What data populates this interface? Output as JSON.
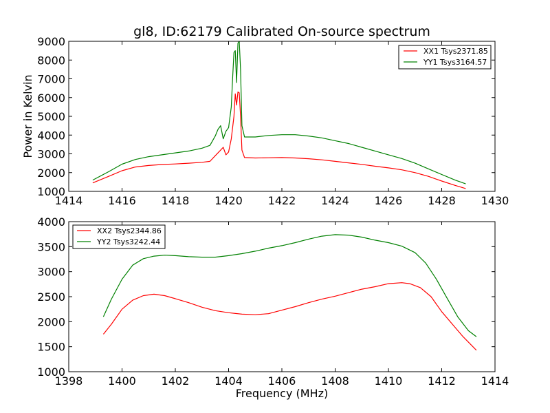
{
  "chart_data": [
    {
      "type": "line",
      "title": "gl8, ID:62179 Calibrated On-source spectrum",
      "xlabel": "",
      "ylabel": "Power in Kelvin",
      "xlim": [
        1414,
        1430
      ],
      "ylim": [
        1000,
        9000
      ],
      "xticks": [
        1414,
        1416,
        1418,
        1420,
        1422,
        1424,
        1426,
        1428,
        1430
      ],
      "yticks": [
        1000,
        2000,
        3000,
        4000,
        5000,
        6000,
        7000,
        8000,
        9000
      ],
      "legend_position": "top-right",
      "series": [
        {
          "name": "XX1 Tsys2371.85",
          "color": "#ff0000",
          "x": [
            1414.9,
            1415.5,
            1416.0,
            1416.5,
            1417.0,
            1417.5,
            1418.0,
            1418.5,
            1419.0,
            1419.3,
            1419.5,
            1419.7,
            1419.8,
            1419.9,
            1420.0,
            1420.1,
            1420.2,
            1420.25,
            1420.3,
            1420.35,
            1420.4,
            1420.45,
            1420.5,
            1420.6,
            1421.0,
            1421.5,
            1422.0,
            1422.5,
            1423.0,
            1423.5,
            1424.0,
            1424.5,
            1425.0,
            1425.5,
            1426.0,
            1426.5,
            1427.0,
            1427.5,
            1428.0,
            1428.5,
            1428.9
          ],
          "y": [
            1450,
            1800,
            2100,
            2300,
            2380,
            2430,
            2460,
            2500,
            2550,
            2600,
            2900,
            3200,
            3350,
            2950,
            3100,
            3800,
            5000,
            6200,
            5600,
            6300,
            6250,
            5000,
            3200,
            2800,
            2780,
            2790,
            2800,
            2780,
            2740,
            2680,
            2600,
            2520,
            2440,
            2340,
            2250,
            2150,
            2000,
            1800,
            1550,
            1320,
            1150
          ]
        },
        {
          "name": "YY1 Tsys3164.57",
          "color": "#008000",
          "x": [
            1414.9,
            1415.5,
            1416.0,
            1416.5,
            1417.0,
            1417.5,
            1418.0,
            1418.5,
            1419.0,
            1419.3,
            1419.5,
            1419.6,
            1419.7,
            1419.8,
            1419.9,
            1420.0,
            1420.1,
            1420.15,
            1420.2,
            1420.25,
            1420.3,
            1420.35,
            1420.4,
            1420.45,
            1420.5,
            1420.6,
            1421.0,
            1421.5,
            1422.0,
            1422.5,
            1423.0,
            1423.5,
            1424.0,
            1424.5,
            1425.0,
            1425.5,
            1426.0,
            1426.5,
            1427.0,
            1427.5,
            1428.0,
            1428.5,
            1428.9
          ],
          "y": [
            1600,
            2050,
            2450,
            2700,
            2850,
            2950,
            3050,
            3150,
            3300,
            3450,
            3950,
            4300,
            4500,
            3800,
            4200,
            4400,
            5500,
            7000,
            8400,
            8500,
            6800,
            8900,
            9000,
            7500,
            4500,
            3900,
            3900,
            3980,
            4020,
            4020,
            3950,
            3850,
            3700,
            3550,
            3350,
            3150,
            2950,
            2750,
            2500,
            2200,
            1900,
            1600,
            1400
          ]
        }
      ]
    },
    {
      "type": "line",
      "title": "",
      "xlabel": "Frequency (MHz)",
      "ylabel": "",
      "xlim": [
        1398,
        1414
      ],
      "ylim": [
        1000,
        4000
      ],
      "xticks": [
        1398,
        1400,
        1402,
        1404,
        1406,
        1408,
        1410,
        1412,
        1414
      ],
      "yticks": [
        1000,
        1500,
        2000,
        2500,
        3000,
        3500,
        4000
      ],
      "legend_position": "top-left",
      "series": [
        {
          "name": "XX2 Tsys2344.86",
          "color": "#ff0000",
          "x": [
            1399.3,
            1399.6,
            1400.0,
            1400.4,
            1400.8,
            1401.2,
            1401.6,
            1402.0,
            1402.5,
            1403.0,
            1403.5,
            1404.0,
            1404.5,
            1405.0,
            1405.5,
            1406.0,
            1406.5,
            1407.0,
            1407.5,
            1408.0,
            1408.5,
            1409.0,
            1409.5,
            1410.0,
            1410.5,
            1410.8,
            1411.2,
            1411.6,
            1412.0,
            1412.4,
            1412.8,
            1413.3
          ],
          "y": [
            1750,
            1950,
            2250,
            2430,
            2520,
            2550,
            2520,
            2460,
            2380,
            2290,
            2220,
            2180,
            2150,
            2140,
            2160,
            2230,
            2300,
            2380,
            2450,
            2510,
            2580,
            2650,
            2700,
            2760,
            2780,
            2760,
            2680,
            2500,
            2200,
            1950,
            1700,
            1430
          ]
        },
        {
          "name": "YY2 Tsys3242.44",
          "color": "#008000",
          "x": [
            1399.3,
            1399.6,
            1400.0,
            1400.4,
            1400.8,
            1401.2,
            1401.6,
            1402.0,
            1402.5,
            1403.0,
            1403.5,
            1404.0,
            1404.5,
            1405.0,
            1405.5,
            1406.0,
            1406.5,
            1407.0,
            1407.5,
            1408.0,
            1408.5,
            1409.0,
            1409.5,
            1410.0,
            1410.5,
            1411.0,
            1411.4,
            1411.8,
            1412.2,
            1412.6,
            1413.0,
            1413.3
          ],
          "y": [
            2100,
            2450,
            2850,
            3130,
            3260,
            3310,
            3330,
            3320,
            3300,
            3290,
            3290,
            3320,
            3360,
            3410,
            3470,
            3520,
            3580,
            3650,
            3710,
            3740,
            3730,
            3690,
            3630,
            3580,
            3510,
            3380,
            3170,
            2850,
            2470,
            2100,
            1820,
            1700
          ]
        }
      ]
    }
  ]
}
